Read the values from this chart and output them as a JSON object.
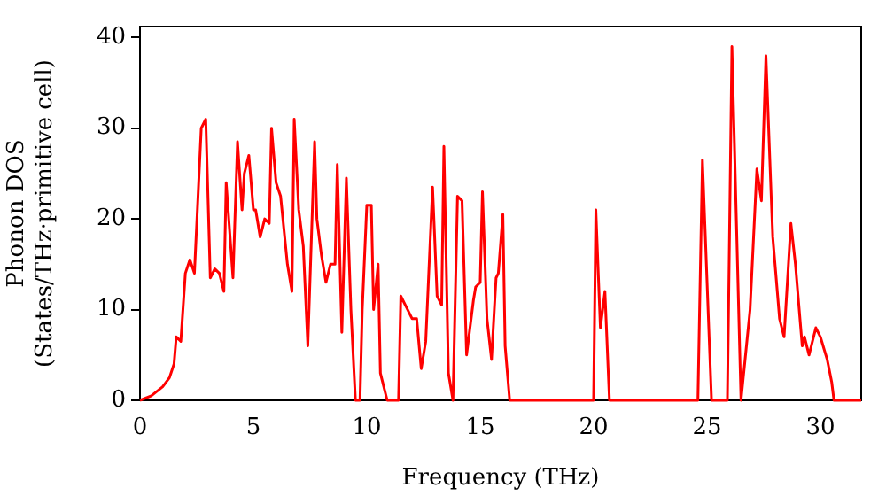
{
  "chart_data": {
    "type": "line",
    "xlabel": "Frequency (THz)",
    "ylabel": "Phonon DOS\n(States/THz·primitive cell)",
    "x": [
      0,
      0.5,
      1,
      1.3,
      1.5,
      1.6,
      1.8,
      2,
      2.2,
      2.4,
      2.7,
      2.9,
      3.1,
      3.3,
      3.5,
      3.7,
      3.8,
      4.1,
      4.3,
      4.5,
      4.6,
      4.8,
      5,
      5.1,
      5.3,
      5.5,
      5.7,
      5.8,
      6,
      6.2,
      6.5,
      6.7,
      6.8,
      7,
      7.2,
      7.4,
      7.7,
      7.8,
      8,
      8.2,
      8.4,
      8.6,
      8.7,
      8.9,
      9.1,
      9.3,
      9.5,
      9.7,
      9.8,
      10,
      10.2,
      10.3,
      10.5,
      10.6,
      10.9,
      11.4,
      11.5,
      11.8,
      12,
      12.2,
      12.4,
      12.6,
      12.9,
      13.1,
      13.3,
      13.4,
      13.6,
      13.8,
      14,
      14.2,
      14.4,
      14.7,
      14.8,
      15,
      15.1,
      15.3,
      15.5,
      15.7,
      15.8,
      16,
      16.1,
      16.3,
      20,
      20.1,
      20.3,
      20.5,
      20.7,
      24.6,
      24.8,
      25.2,
      25.9,
      26.1,
      26.5,
      26.9,
      27.2,
      27.4,
      27.6,
      27.9,
      28.2,
      28.4,
      28.7,
      28.9,
      29.2,
      29.3,
      29.5,
      29.8,
      30,
      30.3,
      30.5,
      30.6,
      31.8
    ],
    "series": [
      {
        "color": "#ff0000",
        "values": [
          0,
          0.5,
          1.5,
          2.5,
          4,
          7,
          6.5,
          14,
          15.5,
          14,
          30,
          31,
          13.5,
          14.5,
          14,
          12,
          24,
          13.5,
          28.5,
          21,
          25,
          27,
          21,
          21,
          18,
          20,
          19.5,
          30,
          24,
          22.5,
          15,
          12,
          31,
          21,
          17,
          6,
          28.5,
          20,
          16,
          13,
          15,
          15,
          26,
          7.5,
          24.5,
          10,
          0,
          0,
          10,
          21.5,
          21.5,
          10,
          15,
          3,
          0,
          0,
          11.5,
          10,
          9,
          9,
          3.5,
          6.5,
          23.5,
          11.5,
          10.5,
          28,
          3,
          0,
          22.5,
          22,
          5,
          11,
          12.5,
          13,
          23,
          9,
          4.5,
          13.5,
          14,
          20.5,
          6,
          0,
          0,
          21,
          8,
          12,
          0,
          0,
          26.5,
          0,
          0,
          39,
          0,
          10,
          25.5,
          22,
          38,
          18,
          9,
          7,
          19.5,
          15,
          6,
          7,
          5,
          8,
          7,
          4.5,
          2,
          0,
          0
        ]
      }
    ],
    "xlim": [
      0,
      31.8
    ],
    "ylim": [
      0,
      41.2
    ],
    "xticks": [
      0,
      5,
      10,
      15,
      20,
      25,
      30
    ],
    "yticks": [
      0,
      10,
      20,
      30,
      40
    ],
    "grid": false,
    "legend": false,
    "marker": "none",
    "line_style": "solid"
  }
}
